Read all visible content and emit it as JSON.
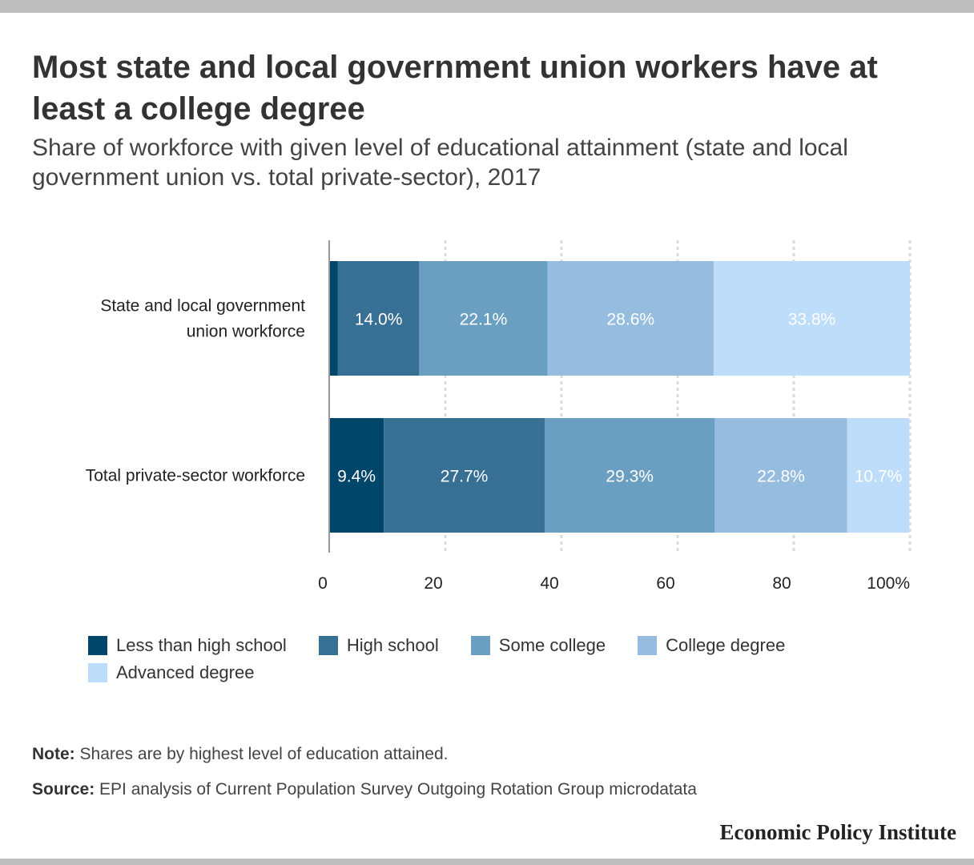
{
  "title": "Most state and local government union workers have at least a college degree",
  "subtitle": "Share of workforce with given level of educational attainment (state and local government union vs. total private-sector), 2017",
  "note_label": "Note:",
  "note_text": "Shares are by highest level of education attained.",
  "source_label": "Source:",
  "source_text": "EPI analysis of Current Population Survey Outgoing Rotation Group microdatata",
  "brand": "Economic Policy Institute",
  "chart_data": {
    "type": "bar",
    "orientation": "horizontal",
    "stacked": true,
    "categories": [
      "State and local government union workforce",
      "Total private-sector workforce"
    ],
    "category_lines": [
      [
        "State and local government",
        "union workforce"
      ],
      [
        "Total private-sector workforce"
      ]
    ],
    "series": [
      {
        "name": "Less than high school",
        "color": "#00456a",
        "values": [
          1.5,
          9.4
        ],
        "labels": [
          "",
          "9.4%"
        ]
      },
      {
        "name": "High school",
        "color": "#386f95",
        "values": [
          14.0,
          27.7
        ],
        "labels": [
          "14.0%",
          "27.7%"
        ]
      },
      {
        "name": "Some college",
        "color": "#6b9fc2",
        "values": [
          22.1,
          29.3
        ],
        "labels": [
          "22.1%",
          "29.3%"
        ]
      },
      {
        "name": "College degree",
        "color": "#96bddf",
        "values": [
          28.6,
          22.8
        ],
        "labels": [
          "28.6%",
          "22.8%"
        ]
      },
      {
        "name": "Advanced degree",
        "color": "#bdddfa",
        "values": [
          33.8,
          10.7
        ],
        "labels": [
          "33.8%",
          "10.7%"
        ]
      }
    ],
    "xlim": [
      0,
      100
    ],
    "x_ticks": [
      0,
      20,
      40,
      60,
      80,
      100
    ],
    "x_tick_labels": [
      "0",
      "20",
      "40",
      "60",
      "80",
      "100%"
    ],
    "grid": true,
    "legend_position": "bottom"
  }
}
